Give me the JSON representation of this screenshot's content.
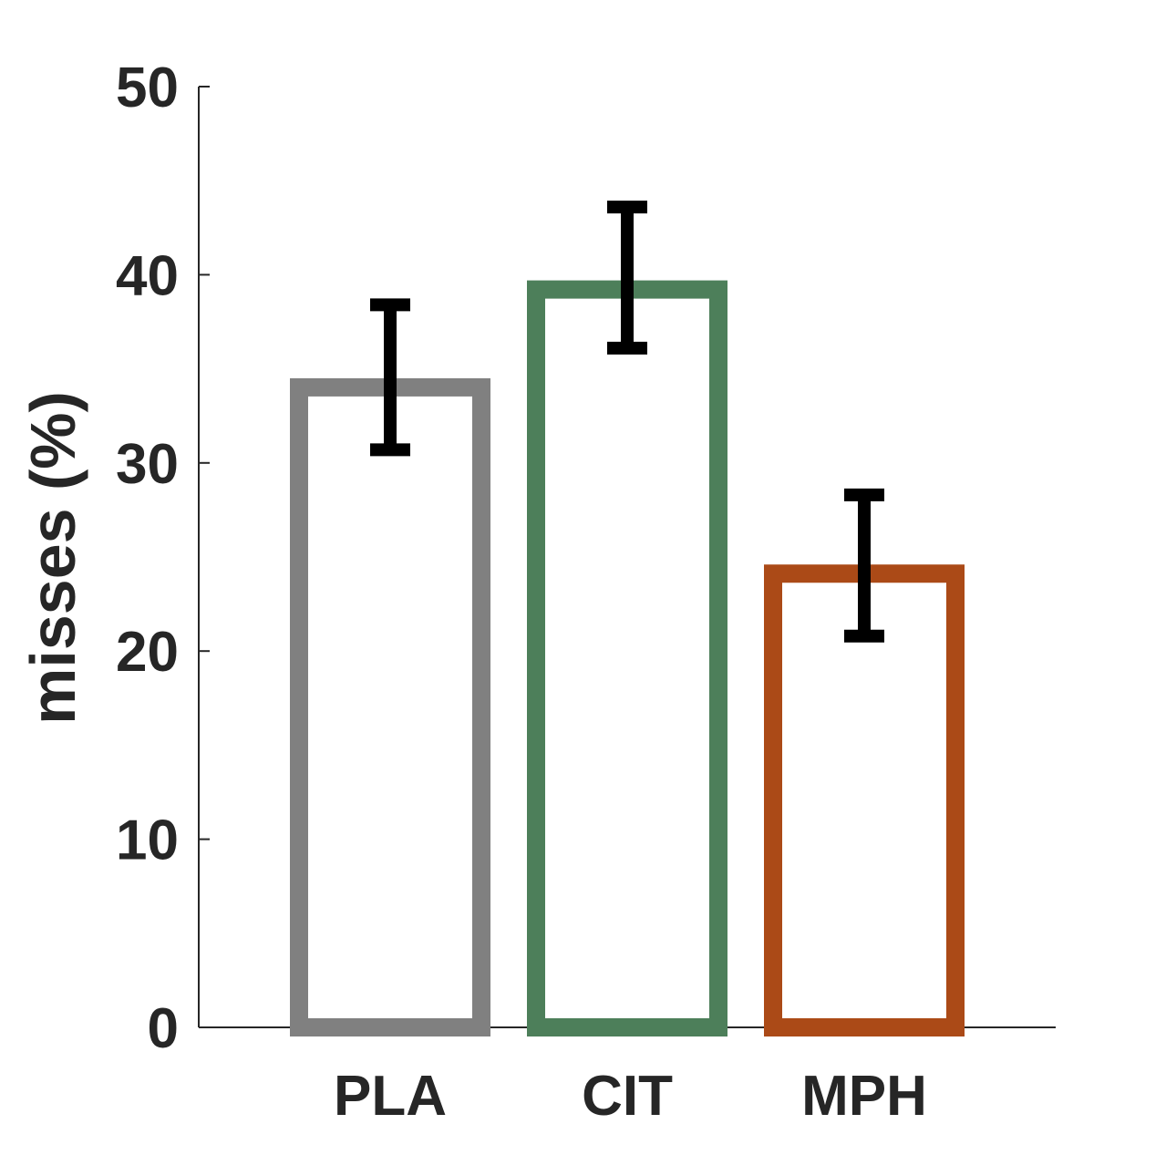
{
  "chart_data": {
    "type": "bar",
    "categories": [
      "PLA",
      "CIT",
      "MPH"
    ],
    "values": [
      34.5,
      39.7,
      24.6
    ],
    "error": [
      [
        30.7,
        38.4
      ],
      [
        36.1,
        43.6
      ],
      [
        20.8,
        28.3
      ]
    ],
    "bar_colors": [
      "#808080",
      "#4d7f5a",
      "#ab4a17"
    ],
    "error_color": "#000000",
    "title": "",
    "xlabel": "",
    "ylabel": "misses (%)",
    "ylim": [
      0,
      50
    ],
    "yticks": [
      "0",
      "10",
      "20",
      "30",
      "40",
      "50"
    ],
    "grid": false
  }
}
